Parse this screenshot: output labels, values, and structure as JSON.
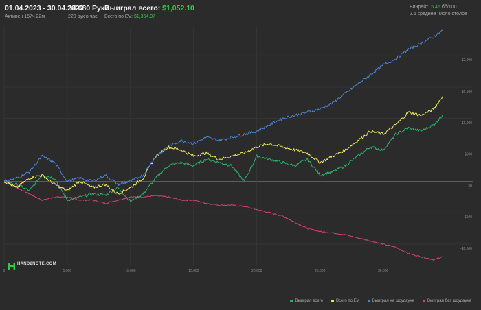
{
  "header": {
    "date_range": "01.04.2023 - 30.04.2023",
    "active": "Активен 157ч 22м",
    "hands": "34 680 Руки",
    "hands_per_hour": "220 рук в час",
    "won_label": "Выиграл всего:",
    "won_value": "$1,052.10",
    "ev_label": "Всего по EV:",
    "ev_value": "$1,354.97",
    "winrate_label": "Винрейт:",
    "winrate_value": "5.46",
    "winrate_unit": "бб/100",
    "tables": "2.6 среднее число столов"
  },
  "logo": {
    "text": "HAND2NOTE.COM"
  },
  "legend": [
    {
      "label": "Выиграл всего",
      "color": "#2db36b"
    },
    {
      "label": "Всего по EV",
      "color": "#f0ec5c"
    },
    {
      "label": "Выиграл на шоудауне",
      "color": "#4a86d8"
    },
    {
      "label": "Выиграл без шоудауна",
      "color": "#d6427a"
    }
  ],
  "colors": {
    "background": "#2b2b2b",
    "grid": "#3c3c3c",
    "zero_line": "#6e6e6e",
    "won": "#2db36b",
    "ev": "#f0ec5c",
    "showdown": "#4a86d8",
    "non_showdown": "#d6427a"
  },
  "chart_data": {
    "type": "line",
    "xlabel": "",
    "ylabel": "",
    "xlim": [
      0,
      36000
    ],
    "ylim": [
      -1350,
      2450
    ],
    "x_ticks": [
      0,
      5000,
      10000,
      15000,
      20000,
      25000,
      30000
    ],
    "x_tick_labels": [
      "0",
      "5,000",
      "10,000",
      "15,000",
      "20,000",
      "25,000",
      "30,000"
    ],
    "y_ticks": [
      -1000,
      -500,
      0,
      500,
      1000,
      1500,
      2000
    ],
    "y_tick_labels": [
      "-$1,000",
      "-$500",
      "$0",
      "$500",
      "$1,000",
      "$1,500",
      "$2,000"
    ],
    "grid": true,
    "legend_position": "bottom-right",
    "x": [
      0,
      1000,
      2000,
      3000,
      4000,
      5000,
      6000,
      7000,
      8000,
      9000,
      10000,
      11000,
      12000,
      13000,
      14000,
      15000,
      16000,
      17000,
      18000,
      19000,
      20000,
      21000,
      22000,
      23000,
      24000,
      25000,
      26000,
      27000,
      28000,
      29000,
      30000,
      31000,
      32000,
      33000,
      34000,
      34680
    ],
    "series": [
      {
        "name": "Выиграл всего",
        "color": "#2db36b",
        "values": [
          0,
          -50,
          -150,
          100,
          50,
          -300,
          -250,
          -200,
          -220,
          -100,
          -320,
          -200,
          50,
          250,
          300,
          250,
          350,
          300,
          250,
          0,
          400,
          350,
          300,
          250,
          350,
          100,
          150,
          250,
          400,
          550,
          500,
          750,
          850,
          800,
          900,
          1050
        ]
      },
      {
        "name": "Всего по EV",
        "color": "#f0ec5c",
        "values": [
          0,
          -100,
          50,
          100,
          -50,
          -150,
          0,
          -100,
          -50,
          -200,
          -100,
          50,
          400,
          550,
          500,
          400,
          450,
          350,
          400,
          450,
          550,
          600,
          550,
          500,
          450,
          300,
          400,
          500,
          650,
          800,
          750,
          900,
          1100,
          1050,
          1150,
          1350
        ]
      },
      {
        "name": "Выиграл на шоудауне",
        "color": "#4a86d8",
        "values": [
          0,
          50,
          150,
          400,
          300,
          0,
          50,
          0,
          100,
          -50,
          0,
          100,
          400,
          550,
          650,
          600,
          700,
          650,
          700,
          750,
          800,
          900,
          1000,
          1050,
          1100,
          1150,
          1250,
          1400,
          1550,
          1700,
          1850,
          1950,
          2100,
          2200,
          2300,
          2400
        ]
      },
      {
        "name": "Выиграл без шоудауна",
        "color": "#d6427a",
        "values": [
          0,
          -100,
          -200,
          -300,
          -250,
          -250,
          -300,
          -300,
          -350,
          -300,
          -250,
          -250,
          -230,
          -250,
          -300,
          -300,
          -350,
          -380,
          -380,
          -400,
          -450,
          -500,
          -550,
          -650,
          -750,
          -800,
          -820,
          -850,
          -900,
          -950,
          -1000,
          -1050,
          -1150,
          -1200,
          -1250,
          -1200
        ]
      }
    ]
  }
}
